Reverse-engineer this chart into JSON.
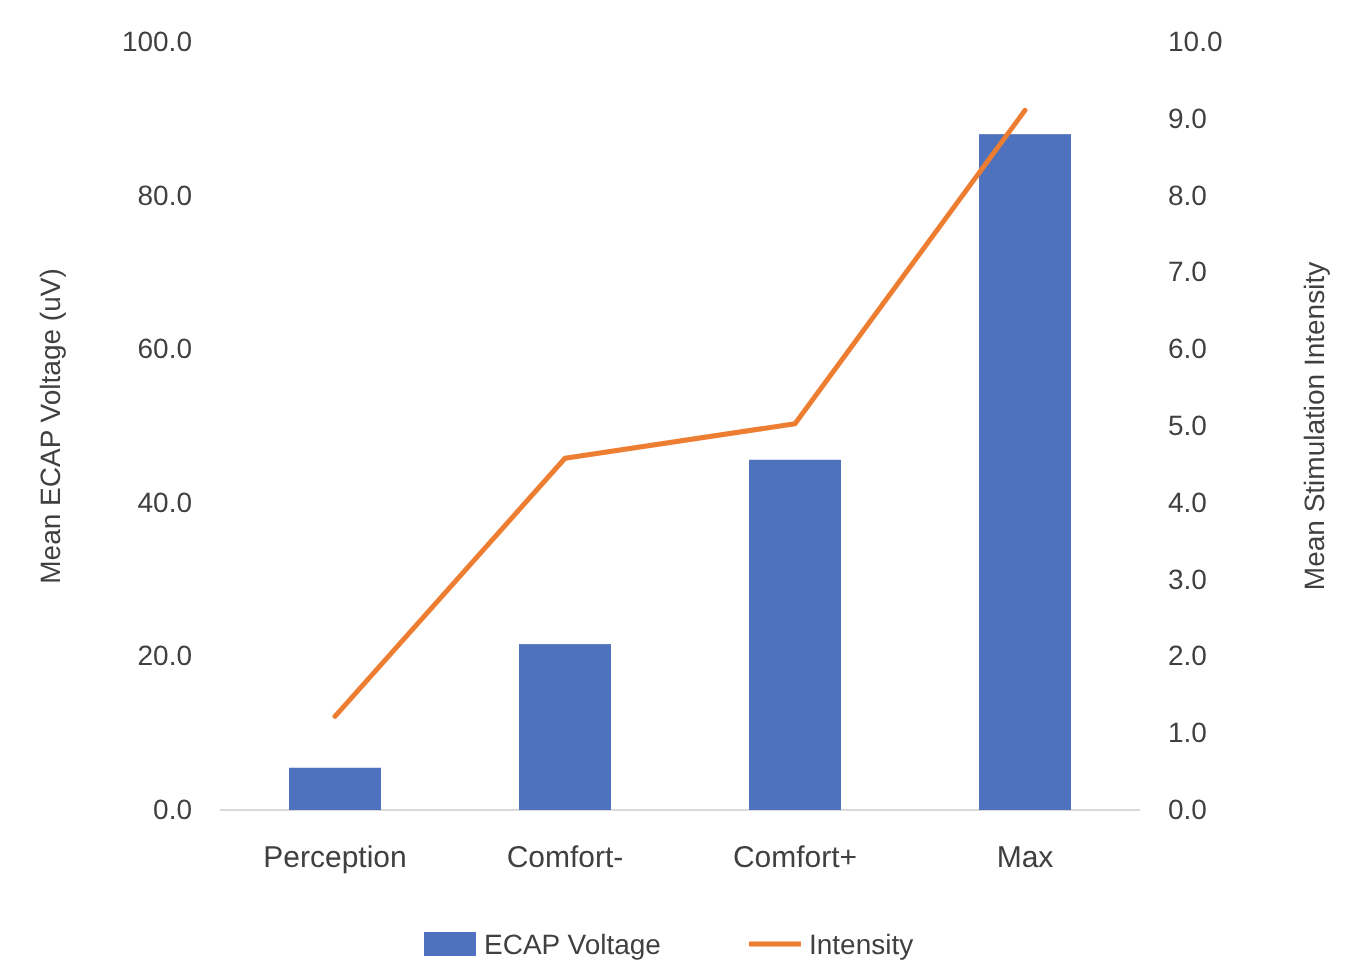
{
  "chart_data": {
    "type": "bar",
    "categories": [
      "Perception",
      "Comfort-",
      "Comfort+",
      "Max"
    ],
    "ylabel": "Mean ECAP Voltage (uV)",
    "y2label": "Mean Stimulation Intensity",
    "ylim": [
      0,
      100
    ],
    "yticks": [
      {
        "value": 0,
        "label": "0.0"
      },
      {
        "value": 20,
        "label": "20.0"
      },
      {
        "value": 40,
        "label": "40.0"
      },
      {
        "value": 60,
        "label": "60.0"
      },
      {
        "value": 80,
        "label": "80.0"
      },
      {
        "value": 100,
        "label": "100.0"
      }
    ],
    "y2lim": [
      0,
      10
    ],
    "y2ticks": [
      {
        "value": 0,
        "label": "0.0"
      },
      {
        "value": 1,
        "label": "1.0"
      },
      {
        "value": 2,
        "label": "2.0"
      },
      {
        "value": 3,
        "label": "3.0"
      },
      {
        "value": 4,
        "label": "4.0"
      },
      {
        "value": 5,
        "label": "5.0"
      },
      {
        "value": 6,
        "label": "6.0"
      },
      {
        "value": 7,
        "label": "7.0"
      },
      {
        "value": 8,
        "label": "8.0"
      },
      {
        "value": 9,
        "label": "9.0"
      },
      {
        "value": 10,
        "label": "10.0"
      }
    ],
    "series": [
      {
        "name": "ECAP Voltage",
        "color": "#4f72be",
        "values": [
          5.5,
          21.6,
          45.6,
          88.0
        ]
      },
      {
        "name": "Intensity",
        "type": "line",
        "axis": "y2",
        "color": "#ed7d31",
        "values": [
          1.22,
          4.58,
          5.03,
          9.11
        ]
      }
    ],
    "legend": "bottom",
    "grid": false
  }
}
